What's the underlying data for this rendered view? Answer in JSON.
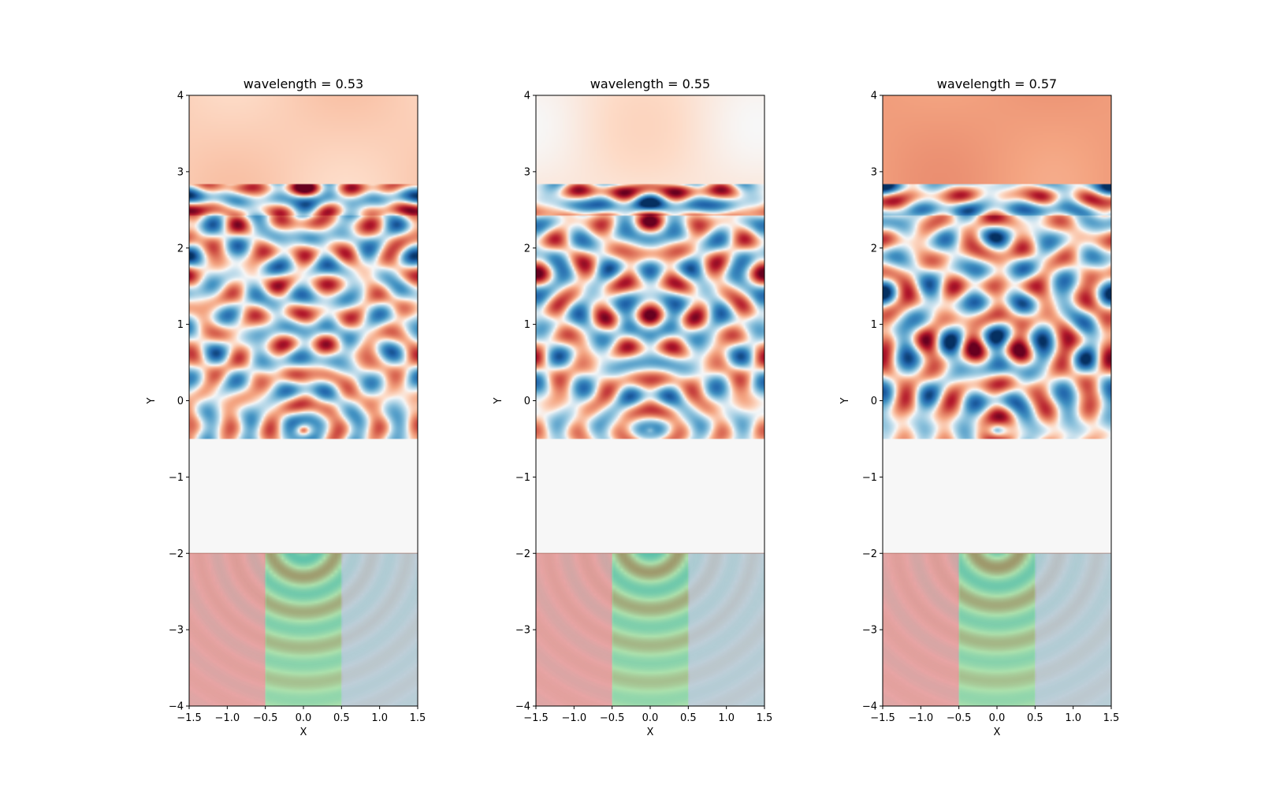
{
  "chart_data": [
    {
      "type": "heatmap",
      "title": "wavelength = 0.53",
      "xlabel": "X",
      "ylabel": "Y",
      "xlim": [
        -1.5,
        1.5
      ],
      "ylim": [
        -4,
        4
      ],
      "xticks": [
        -1.5,
        -1.0,
        -0.5,
        0.0,
        0.5,
        1.0,
        1.5
      ],
      "xtick_labels": [
        "−1.5",
        "−1.0",
        "−0.5",
        "0.0",
        "0.5",
        "1.0",
        "1.5"
      ],
      "yticks": [
        -4,
        -3,
        -2,
        -1,
        0,
        1,
        2,
        3,
        4
      ],
      "ytick_labels": [
        "−4",
        "−3",
        "−2",
        "−1",
        "0",
        "1",
        "2",
        "3",
        "4"
      ],
      "colormap": "RdBu_r",
      "grid": false,
      "regions": [
        {
          "x": [
            -1.5,
            -0.5
          ],
          "y": [
            -4,
            -2
          ],
          "color": "#d24b4b"
        },
        {
          "x": [
            -0.5,
            0.5
          ],
          "y": [
            -4,
            -2
          ],
          "color": "#5cc45c"
        },
        {
          "x": [
            0.5,
            1.5
          ],
          "y": [
            -4,
            -2
          ],
          "color": "#7f9fb4"
        }
      ],
      "wavelength": 0.53,
      "interface_y": 2.45,
      "top_tint": 0.12
    },
    {
      "type": "heatmap",
      "title": "wavelength = 0.55",
      "xlabel": "X",
      "ylabel": "Y",
      "xlim": [
        -1.5,
        1.5
      ],
      "ylim": [
        -4,
        4
      ],
      "xticks": [
        -1.5,
        -1.0,
        -0.5,
        0.0,
        0.5,
        1.0,
        1.5
      ],
      "xtick_labels": [
        "−1.5",
        "−1.0",
        "−0.5",
        "0.0",
        "0.5",
        "1.0",
        "1.5"
      ],
      "yticks": [
        -4,
        -3,
        -2,
        -1,
        0,
        1,
        2,
        3,
        4
      ],
      "ytick_labels": [
        "−4",
        "−3",
        "−2",
        "−1",
        "0",
        "1",
        "2",
        "3",
        "4"
      ],
      "colormap": "RdBu_r",
      "grid": false,
      "regions": [
        {
          "x": [
            -1.5,
            -0.5
          ],
          "y": [
            -4,
            -2
          ],
          "color": "#d24b4b"
        },
        {
          "x": [
            -0.5,
            0.5
          ],
          "y": [
            -4,
            -2
          ],
          "color": "#5cc45c"
        },
        {
          "x": [
            0.5,
            1.5
          ],
          "y": [
            -4,
            -2
          ],
          "color": "#7f9fb4"
        }
      ],
      "wavelength": 0.55,
      "interface_y": 2.45,
      "top_tint": 0.05
    },
    {
      "type": "heatmap",
      "title": "wavelength = 0.57",
      "xlabel": "X",
      "ylabel": "Y",
      "xlim": [
        -1.5,
        1.5
      ],
      "ylim": [
        -4,
        4
      ],
      "xticks": [
        -1.5,
        -1.0,
        -0.5,
        0.0,
        0.5,
        1.0,
        1.5
      ],
      "xtick_labels": [
        "−1.5",
        "−1.0",
        "−0.5",
        "0.0",
        "0.5",
        "1.0",
        "1.5"
      ],
      "yticks": [
        -4,
        -3,
        -2,
        -1,
        0,
        1,
        2,
        3,
        4
      ],
      "ytick_labels": [
        "−4",
        "−3",
        "−2",
        "−1",
        "0",
        "1",
        "2",
        "3",
        "4"
      ],
      "colormap": "RdBu_r",
      "grid": false,
      "regions": [
        {
          "x": [
            -1.5,
            -0.5
          ],
          "y": [
            -4,
            -2
          ],
          "color": "#d24b4b"
        },
        {
          "x": [
            -0.5,
            0.5
          ],
          "y": [
            -4,
            -2
          ],
          "color": "#5cc45c"
        },
        {
          "x": [
            0.5,
            1.5
          ],
          "y": [
            -4,
            -2
          ],
          "color": "#7f9fb4"
        }
      ],
      "wavelength": 0.57,
      "interface_y": 2.45,
      "top_tint": 0.28
    }
  ]
}
